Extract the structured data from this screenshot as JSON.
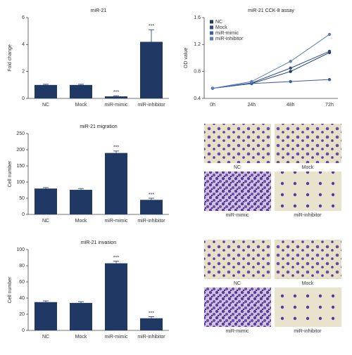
{
  "chart_data": [
    {
      "type": "bar",
      "title": "miR-21",
      "ylabel": "Fold change",
      "color": "#1f3864",
      "categories": [
        "NC",
        "Mock",
        "miR-mimic",
        "miR-inhibitor"
      ],
      "values": [
        1.0,
        1.0,
        0.15,
        4.2
      ],
      "errors": [
        0.05,
        0.05,
        0.05,
        0.9
      ],
      "sig_labels": [
        null,
        null,
        "***",
        "***"
      ],
      "ylim": [
        0,
        6
      ],
      "yticks": [
        0,
        2,
        4,
        6
      ],
      "grid": false
    },
    {
      "type": "line",
      "title": "miR-21 CCK-8 assay",
      "ylabel": "OD value",
      "categories": [
        "0h",
        "24h",
        "48h",
        "72h"
      ],
      "series": [
        {
          "name": "NC",
          "color": "#1f3864",
          "values": [
            0.55,
            0.62,
            0.8,
            1.08
          ]
        },
        {
          "name": "Mock",
          "color": "#2e4a8a",
          "values": [
            0.55,
            0.63,
            0.85,
            1.1
          ]
        },
        {
          "name": "miR-mimic",
          "color": "#3a5fa8",
          "values": [
            0.55,
            0.62,
            0.65,
            0.68
          ]
        },
        {
          "name": "miR-inhibitor",
          "color": "#5a7fc0",
          "values": [
            0.55,
            0.65,
            0.95,
            1.35
          ]
        }
      ],
      "ylim": [
        0.4,
        1.6
      ],
      "yticks": [
        0.4,
        0.8,
        1.2,
        1.6
      ],
      "grid": false,
      "legend": "top-left"
    },
    {
      "type": "bar",
      "title": "miR-21 migration",
      "ylabel": "Cell number",
      "color": "#1f3864",
      "categories": [
        "NC",
        "Mock",
        "miR-mimic",
        "miR-inhibitor"
      ],
      "values": [
        80,
        76,
        190,
        45
      ],
      "errors": [
        3,
        4,
        6,
        5
      ],
      "sig_labels": [
        null,
        null,
        "***",
        "***"
      ],
      "ylim": [
        0,
        250
      ],
      "yticks": [
        0,
        50,
        100,
        150,
        200,
        250
      ],
      "grid": false
    },
    {
      "type": "bar",
      "title": "miR-21 invasion",
      "ylabel": "Cell number",
      "color": "#1f3864",
      "categories": [
        "NC",
        "Mock",
        "miR-mimic",
        "miR-inhibitor"
      ],
      "values": [
        35,
        34,
        83,
        15
      ],
      "errors": [
        1.5,
        1.5,
        2.5,
        2
      ],
      "sig_labels": [
        null,
        null,
        "***",
        "***"
      ],
      "ylim": [
        0,
        100
      ],
      "yticks": [
        0,
        20,
        40,
        60,
        80,
        100
      ],
      "grid": false
    }
  ],
  "image_panels": [
    {
      "labels": [
        "NC",
        "Mock",
        "miR-mimic",
        "miR-inhibitor"
      ]
    },
    {
      "labels": [
        "NC",
        "Mock",
        "miR-mimic",
        "miR-inhibitor"
      ]
    }
  ]
}
